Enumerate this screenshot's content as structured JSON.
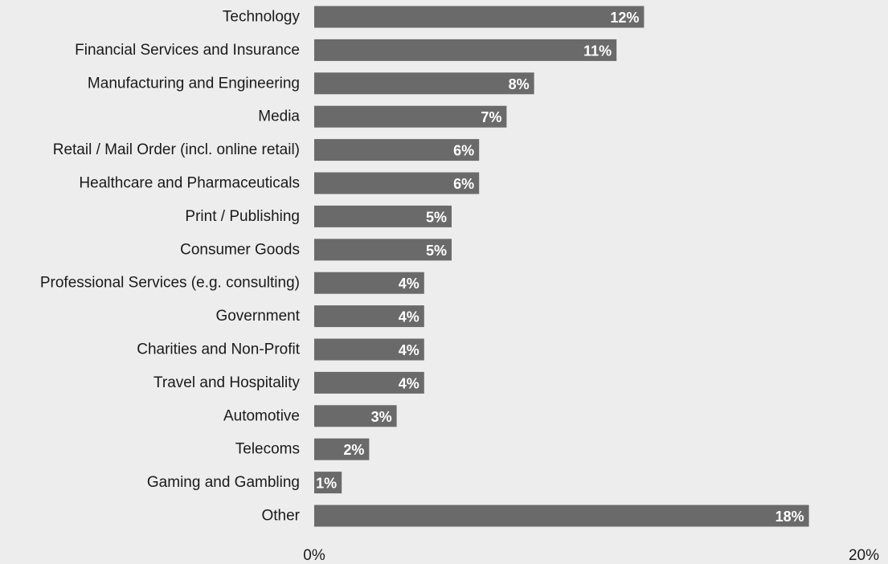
{
  "colors": {
    "background": "#ededed",
    "bar": "#6a6a6a",
    "value_label": "#ffffff",
    "text": "#1a1a1a"
  },
  "chart_data": {
    "type": "bar",
    "orientation": "horizontal",
    "title": "",
    "xlabel": "",
    "ylabel": "",
    "categories": [
      "Technology",
      "Financial Services and Insurance",
      "Manufacturing and Engineering",
      "Media",
      "Retail / Mail Order (incl. online retail)",
      "Healthcare and Pharmaceuticals",
      "Print / Publishing",
      "Consumer Goods",
      "Professional Services (e.g. consulting)",
      "Government",
      "Charities and Non-Profit",
      "Travel and Hospitality",
      "Automotive",
      "Telecoms",
      "Gaming and Gambling",
      "Other"
    ],
    "values": [
      12,
      11,
      8,
      7,
      6,
      6,
      5,
      5,
      4,
      4,
      4,
      4,
      3,
      2,
      1,
      18
    ],
    "value_labels": [
      "12%",
      "11%",
      "8%",
      "7%",
      "6%",
      "6%",
      "5%",
      "5%",
      "4%",
      "4%",
      "4%",
      "4%",
      "3%",
      "2%",
      "1%",
      "18%"
    ],
    "xlim": [
      0,
      20
    ],
    "x_ticks": [
      0,
      20
    ],
    "x_tick_labels": [
      "0%",
      "20%"
    ],
    "grid": false,
    "legend": "none"
  }
}
